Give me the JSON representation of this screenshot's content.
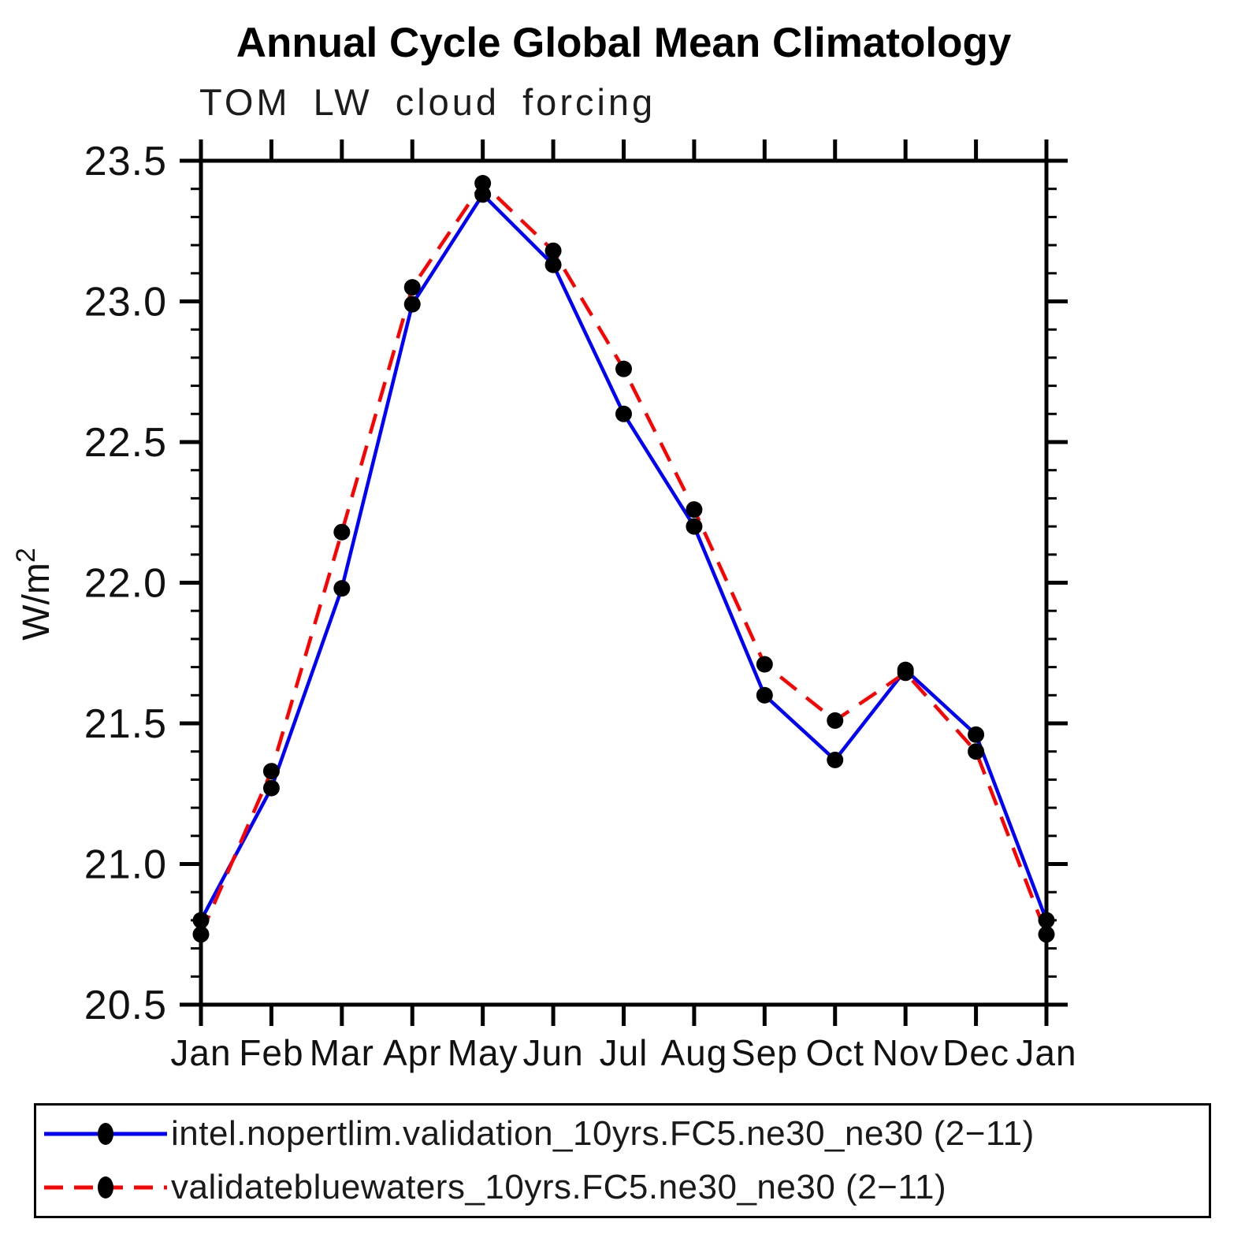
{
  "page": {
    "background": "#ffffff"
  },
  "chart": {
    "title": "Annual Cycle Global Mean Climatology",
    "subtitle": "TOM LW cloud forcing",
    "ylabel_base": "W/m",
    "ylabel_sup": "2",
    "legend": [
      {
        "label": "intel.nopertlim.validation_10yrs.FC5.ne30_ne30 (2−11)",
        "color": "#0000ff",
        "style": "solid"
      },
      {
        "label": "validatebluewaters_10yrs.FC5.ne30_ne30 (2−11)",
        "color": "#ff0000",
        "style": "dashed"
      }
    ]
  },
  "chart_data": {
    "type": "line",
    "title": "Annual Cycle Global Mean Climatology",
    "subtitle": "TOM LW cloud forcing",
    "ylabel": "W/m²",
    "categories": [
      "Jan",
      "Feb",
      "Mar",
      "Apr",
      "May",
      "Jun",
      "Jul",
      "Aug",
      "Sep",
      "Oct",
      "Nov",
      "Dec",
      "Jan"
    ],
    "series": [
      {
        "name": "intel.nopertlim.validation_10yrs.FC5.ne30_ne30 (2-11)",
        "color": "#0000ff",
        "dash": "solid",
        "values": [
          20.8,
          21.27,
          21.98,
          22.99,
          23.38,
          23.13,
          22.6,
          22.2,
          21.6,
          21.37,
          21.69,
          21.46,
          20.8
        ]
      },
      {
        "name": "validatebluewaters_10yrs.FC5.ne30_ne30 (2-11)",
        "color": "#ff0000",
        "dash": "dashed",
        "values": [
          20.75,
          21.33,
          22.18,
          23.05,
          23.42,
          23.18,
          22.76,
          22.26,
          21.71,
          21.51,
          21.68,
          21.4,
          20.75
        ]
      }
    ],
    "ylim": [
      20.5,
      23.5
    ],
    "ytick_major": 0.5,
    "ytick_minor": 0.1,
    "ytick_labels": [
      "20.5",
      "21.0",
      "21.5",
      "22.0",
      "22.5",
      "23.0",
      "23.5"
    ],
    "marker": "filled-circle",
    "marker_color": "#000000",
    "grid": false,
    "legend_position": "bottom"
  }
}
